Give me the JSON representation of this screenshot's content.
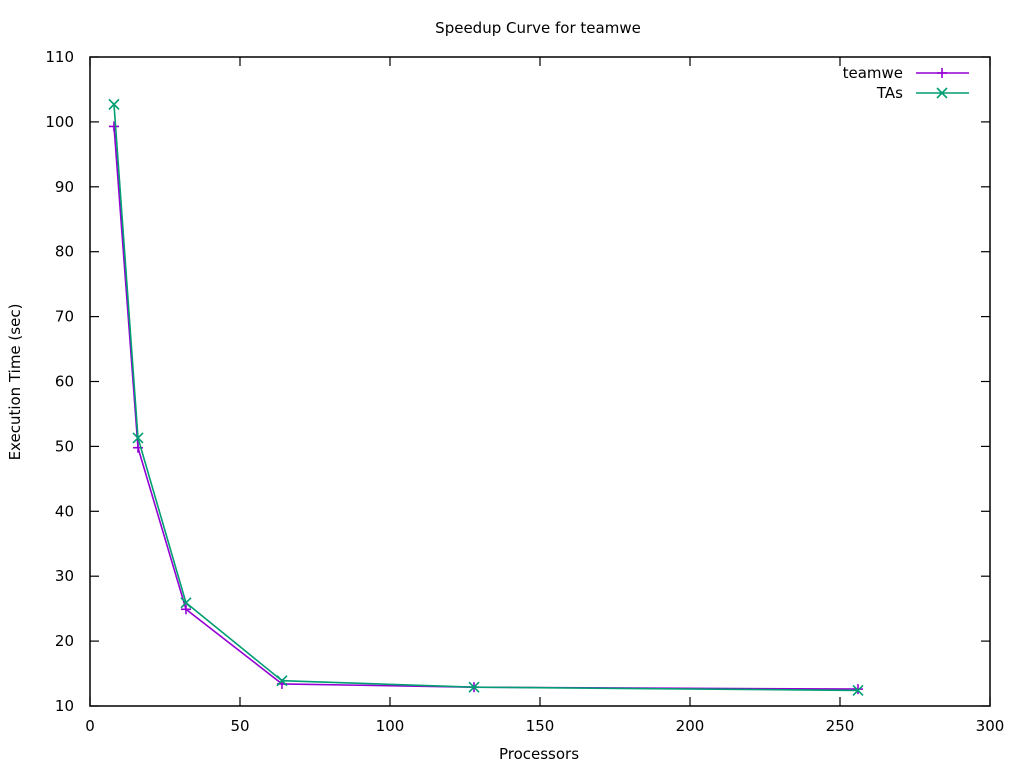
{
  "chart_data": {
    "type": "line",
    "title": "Speedup Curve for teamwe",
    "xlabel": "Processors",
    "ylabel": "Execution Time (sec)",
    "xlim": [
      0,
      300
    ],
    "ylim": [
      10,
      110
    ],
    "xticks": [
      0,
      50,
      100,
      150,
      200,
      250,
      300
    ],
    "yticks": [
      10,
      20,
      30,
      40,
      50,
      60,
      70,
      80,
      90,
      100,
      110
    ],
    "grid": false,
    "legend_position": "top-right",
    "series": [
      {
        "name": "teamwe",
        "color": "#9400d3",
        "marker": "plus",
        "x": [
          8,
          16,
          32,
          64,
          128,
          256
        ],
        "y": [
          99.3,
          49.8,
          24.9,
          13.4,
          12.9,
          12.6
        ]
      },
      {
        "name": "TAs",
        "color": "#009e73",
        "marker": "cross",
        "x": [
          8,
          16,
          32,
          64,
          128,
          256
        ],
        "y": [
          102.7,
          51.3,
          25.9,
          13.9,
          12.9,
          12.4
        ]
      }
    ]
  }
}
